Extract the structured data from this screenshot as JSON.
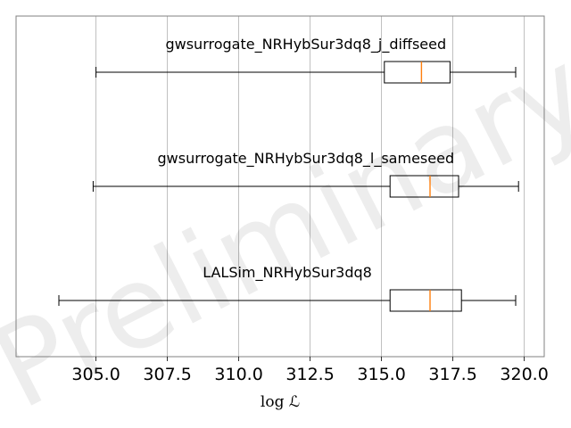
{
  "chart_data": {
    "type": "box",
    "orientation": "horizontal",
    "xlabel": "log ℒ",
    "xlim": [
      302.2,
      320.7
    ],
    "xticks": [
      305.0,
      307.5,
      310.0,
      312.5,
      315.0,
      317.5,
      320.0
    ],
    "xtick_labels": [
      "305.0",
      "307.5",
      "310.0",
      "312.5",
      "315.0",
      "317.5",
      "320.0"
    ],
    "grid": "x",
    "watermark": "Preliminary",
    "colors": {
      "median": "#ff7f0e",
      "box": "#000000",
      "grid": "#b0b0b0",
      "frame": "#808080"
    },
    "series": [
      {
        "name": "gwsurrogate_NRHybSur3dq8_j_diffseed",
        "whisker_low": 305.0,
        "q1": 315.1,
        "median": 316.4,
        "q3": 317.4,
        "whisker_high": 319.7
      },
      {
        "name": "gwsurrogate_NRHybSur3dq8_l_sameseed",
        "whisker_low": 304.9,
        "q1": 315.3,
        "median": 316.7,
        "q3": 317.7,
        "whisker_high": 319.8
      },
      {
        "name": "LALSim_NRHybSur3dq8",
        "whisker_low": 303.7,
        "q1": 315.3,
        "median": 316.7,
        "q3": 317.8,
        "whisker_high": 319.7
      }
    ]
  }
}
